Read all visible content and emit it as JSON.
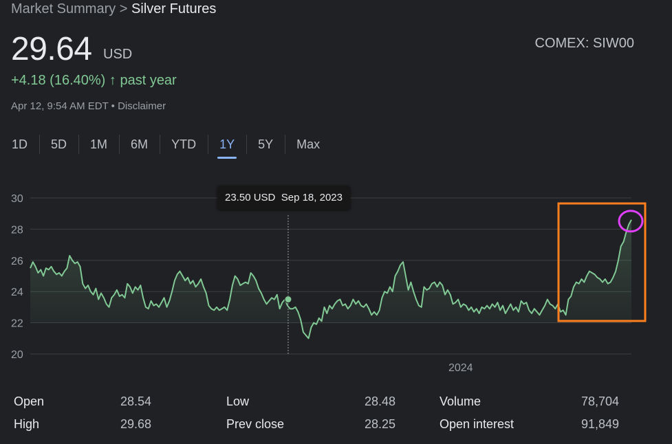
{
  "breadcrumb": {
    "root": "Market Summary",
    "separator": " > ",
    "current": "Silver Futures"
  },
  "quote": {
    "price": "29.64",
    "currency": "USD",
    "exchange": "COMEX: SIW00",
    "change": "+4.18 (16.40%)",
    "change_arrow": "↑",
    "change_period": "past year",
    "timestamp": "Apr 12, 9:54 AM EDT",
    "bullet": " • ",
    "disclaimer": "Disclaimer"
  },
  "ranges": [
    "1D",
    "5D",
    "1M",
    "6M",
    "YTD",
    "1Y",
    "5Y",
    "Max"
  ],
  "active_range": "1Y",
  "tooltip": {
    "price": "23.50 USD",
    "date": "Sep 18, 2023"
  },
  "colors": {
    "line": "#81c995",
    "highlight_box": "#ff7f1f",
    "highlight_circle": "#e040fb",
    "accent": "#8ab4f8"
  },
  "chart_data": {
    "type": "area",
    "title": "",
    "xlabel": "",
    "ylabel": "",
    "ylim": [
      20,
      30
    ],
    "yticks": [
      20,
      22,
      24,
      26,
      28,
      30
    ],
    "xtick_labels": [
      {
        "label": "2024",
        "x": 0.716
      }
    ],
    "grid": true,
    "legend": "none",
    "x_range": [
      "Apr 12, 2023",
      "Apr 12, 2024"
    ],
    "hover_point": {
      "x": 0.429,
      "y": 23.5
    },
    "series": [
      {
        "values": [
          25.5,
          25.9,
          25.6,
          25.2,
          25.4,
          25.0,
          25.5,
          25.4,
          25.6,
          25.3,
          25.1,
          25.2,
          25.0,
          25.3,
          25.5,
          26.3,
          26.0,
          25.8,
          25.9,
          25.6,
          24.5,
          24.2,
          24.4,
          24.0,
          23.8,
          24.2,
          23.5,
          23.9,
          23.6,
          23.2,
          23.0,
          23.6,
          23.8,
          24.1,
          23.7,
          23.8,
          23.6,
          24.5,
          24.3,
          23.9,
          24.3,
          24.1,
          24.4,
          23.6,
          23.0,
          22.9,
          23.4,
          23.1,
          23.2,
          23.0,
          23.3,
          23.6,
          23.0,
          23.4,
          24.0,
          24.7,
          25.1,
          25.3,
          25.0,
          24.7,
          24.9,
          24.5,
          24.7,
          24.3,
          24.5,
          24.8,
          24.3,
          23.9,
          23.1,
          22.9,
          22.8,
          23.0,
          22.8,
          22.9,
          23.0,
          22.8,
          23.5,
          24.4,
          25.0,
          24.8,
          24.4,
          24.5,
          24.6,
          24.5,
          25.2,
          25.0,
          24.7,
          24.2,
          23.9,
          23.5,
          23.2,
          23.4,
          23.6,
          23.5,
          23.8,
          22.9,
          23.3,
          23.5,
          23.1,
          22.9,
          22.9,
          23.0,
          22.7,
          22.2,
          21.4,
          21.2,
          21.0,
          21.7,
          22.0,
          21.9,
          22.3,
          22.1,
          23.0,
          22.6,
          23.1,
          22.9,
          23.2,
          23.4,
          23.5,
          23.1,
          23.2,
          22.9,
          23.1,
          23.5,
          23.2,
          23.4,
          23.1,
          23.0,
          23.2,
          22.9,
          22.5,
          22.7,
          22.5,
          22.8,
          23.6,
          24.0,
          23.9,
          24.3,
          24.0,
          25.0,
          25.3,
          25.7,
          25.9,
          25.0,
          24.1,
          24.6,
          24.0,
          23.5,
          23.1,
          23.0,
          24.3,
          24.1,
          24.2,
          24.5,
          24.6,
          24.3,
          24.6,
          24.4,
          23.8,
          24.1,
          23.8,
          23.2,
          23.3,
          23.5,
          23.0,
          23.2,
          23.1,
          22.8,
          23.0,
          22.7,
          22.9,
          22.6,
          23.0,
          22.9,
          23.1,
          22.9,
          23.2,
          23.0,
          23.3,
          22.8,
          23.1,
          22.6,
          22.9,
          23.2,
          22.8,
          23.0,
          22.7,
          23.4,
          23.2,
          23.3,
          22.8,
          22.6,
          22.9,
          22.7,
          22.5,
          22.8,
          23.1,
          23.5,
          23.2,
          23.1,
          22.9,
          23.2,
          22.7,
          22.8,
          22.5,
          23.5,
          23.7,
          24.3,
          24.6,
          24.5,
          24.8,
          24.6,
          25.0,
          25.3,
          25.2,
          25.1,
          24.9,
          24.8,
          24.6,
          24.8,
          24.5,
          24.6,
          24.9,
          25.3,
          26.0,
          26.9,
          27.2,
          27.8,
          28.3,
          28.6
        ]
      }
    ]
  },
  "stats": [
    {
      "label": "Open",
      "value": "28.54"
    },
    {
      "label": "High",
      "value": "29.68"
    },
    {
      "label": "Low",
      "value": "28.48"
    },
    {
      "label": "Prev close",
      "value": "28.25"
    },
    {
      "label": "Volume",
      "value": "78,704"
    },
    {
      "label": "Open interest",
      "value": "91,849"
    }
  ]
}
